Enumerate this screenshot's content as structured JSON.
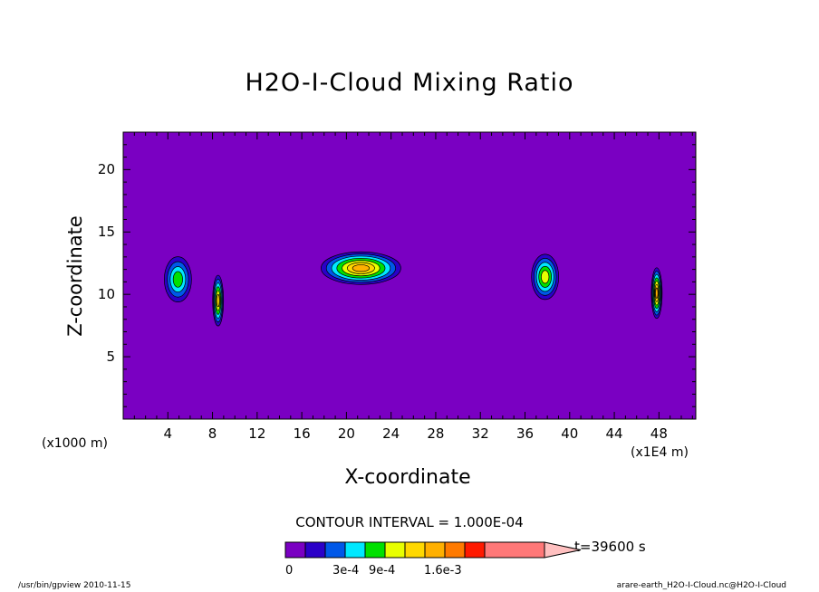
{
  "chart_data": {
    "type": "heatmap",
    "title": "H2O-I-Cloud Mixing Ratio",
    "xlabel": "X-coordinate",
    "ylabel": "Z-coordinate",
    "x_unit_note": "(x1E4 m)",
    "z_unit_note": "(x1000 m)",
    "xlim": [
      0,
      51.3
    ],
    "ylim": [
      0,
      23
    ],
    "x_ticks": [
      4,
      8,
      12,
      16,
      20,
      24,
      28,
      32,
      36,
      40,
      44,
      48
    ],
    "y_ticks": [
      5,
      10,
      15,
      20
    ],
    "grid": false,
    "contour_interval_text": "CONTOUR INTERVAL = 1.000E-04",
    "time_text": "t=39600 s",
    "colorbar": {
      "levels": [
        0,
        0.0001,
        0.0002,
        0.0003,
        0.0005,
        0.0007,
        0.0009,
        0.0011,
        0.0013,
        0.0015,
        0.0016,
        0.002
      ],
      "tick_labels": [
        "0",
        "3e-4",
        "9e-4",
        "1.6e-3"
      ],
      "tick_values": [
        0,
        0.0003,
        0.0009,
        0.0016
      ],
      "colors": [
        "#7a00c2",
        "#2b00c8",
        "#0058e8",
        "#00e8ff",
        "#00e000",
        "#e8ff00",
        "#ffd800",
        "#ffb000",
        "#ff7a00",
        "#ff1a00",
        "#ff7878",
        "#ffc0c0"
      ]
    },
    "cloud_cells": [
      {
        "x": 4.9,
        "z": 11.2,
        "peak": 0.0005
      },
      {
        "x": 8.5,
        "z": 9.5,
        "peak": 0.0009
      },
      {
        "x": 21.3,
        "z": 12.1,
        "peak": 0.0011
      },
      {
        "x": 37.8,
        "z": 11.4,
        "peak": 0.0007
      },
      {
        "x": 47.8,
        "z": 10.1,
        "peak": 0.0011
      }
    ],
    "background_color": "#7a00c2"
  },
  "footer": {
    "left": "/usr/bin/gpview  2010-11-15",
    "right": "arare-earth_H2O-I-Cloud.nc@H2O-I-Cloud"
  }
}
